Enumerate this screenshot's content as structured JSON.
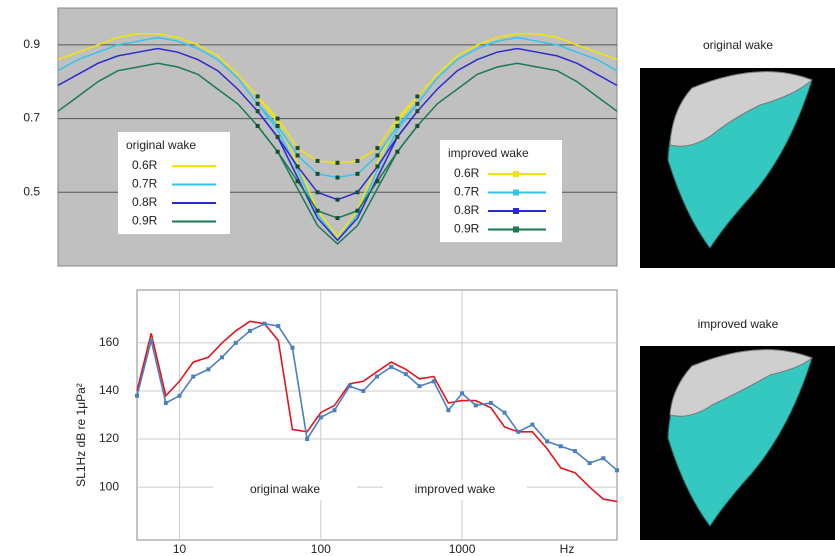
{
  "chart_data": [
    {
      "type": "line",
      "plot_background": "#c0c0c0",
      "grid": true,
      "categories": [
        null,
        null,
        null,
        null,
        null,
        null,
        null,
        null,
        null,
        null,
        null,
        null,
        null,
        null,
        null,
        null,
        null,
        null,
        null,
        null,
        null,
        null,
        null,
        null,
        null,
        null,
        null,
        null,
        null
      ],
      "ylim": [
        0.3,
        1.0
      ],
      "yticks": [
        0.5,
        0.7,
        0.9
      ],
      "legend_titles": [
        "original wake",
        "improved wake"
      ],
      "series": [
        {
          "name": "0.6R",
          "color": "#f2e600",
          "marker": false,
          "values": [
            0.86,
            0.88,
            0.9,
            0.92,
            0.93,
            0.93,
            0.92,
            0.9,
            0.87,
            0.82,
            0.76,
            0.69,
            0.58,
            0.45,
            0.38,
            0.45,
            0.58,
            0.69,
            0.76,
            0.82,
            0.87,
            0.9,
            0.92,
            0.93,
            0.93,
            0.92,
            0.9,
            0.88,
            0.86
          ]
        },
        {
          "name": "0.7R",
          "color": "#33c4ee",
          "marker": false,
          "values": [
            0.83,
            0.86,
            0.88,
            0.9,
            0.91,
            0.92,
            0.91,
            0.89,
            0.86,
            0.81,
            0.74,
            0.67,
            0.56,
            0.44,
            0.37,
            0.44,
            0.56,
            0.67,
            0.74,
            0.81,
            0.86,
            0.89,
            0.91,
            0.92,
            0.91,
            0.9,
            0.88,
            0.86,
            0.83
          ]
        },
        {
          "name": "0.8R",
          "color": "#2a2ad0",
          "marker": false,
          "values": [
            0.79,
            0.82,
            0.85,
            0.87,
            0.88,
            0.89,
            0.88,
            0.86,
            0.83,
            0.78,
            0.72,
            0.65,
            0.54,
            0.43,
            0.37,
            0.43,
            0.54,
            0.65,
            0.72,
            0.78,
            0.83,
            0.86,
            0.88,
            0.89,
            0.88,
            0.87,
            0.85,
            0.82,
            0.79
          ]
        },
        {
          "name": "0.9R",
          "color": "#1a7a50",
          "marker": false,
          "values": [
            0.72,
            0.76,
            0.8,
            0.83,
            0.84,
            0.85,
            0.84,
            0.82,
            0.78,
            0.74,
            0.68,
            0.61,
            0.51,
            0.41,
            0.36,
            0.41,
            0.51,
            0.61,
            0.68,
            0.74,
            0.78,
            0.82,
            0.84,
            0.85,
            0.84,
            0.83,
            0.8,
            0.76,
            0.72
          ]
        },
        {
          "name": "0.6R",
          "color": "#f2e600",
          "marker": true,
          "values": [
            null,
            null,
            null,
            null,
            null,
            null,
            null,
            null,
            null,
            null,
            0.76,
            0.7,
            0.62,
            0.585,
            0.58,
            0.585,
            0.62,
            0.7,
            0.76,
            null,
            null,
            null,
            null,
            null,
            null,
            null,
            null,
            null,
            null
          ]
        },
        {
          "name": "0.7R",
          "color": "#33c4ee",
          "marker": true,
          "values": [
            null,
            null,
            null,
            null,
            null,
            null,
            null,
            null,
            null,
            null,
            0.74,
            0.68,
            0.6,
            0.55,
            0.54,
            0.55,
            0.6,
            0.68,
            0.74,
            null,
            null,
            null,
            null,
            null,
            null,
            null,
            null,
            null,
            null
          ]
        },
        {
          "name": "0.8R",
          "color": "#2a2ad0",
          "marker": true,
          "values": [
            null,
            null,
            null,
            null,
            null,
            null,
            null,
            null,
            null,
            null,
            0.72,
            0.65,
            0.57,
            0.5,
            0.48,
            0.5,
            0.57,
            0.65,
            0.72,
            null,
            null,
            null,
            null,
            null,
            null,
            null,
            null,
            null,
            null
          ]
        },
        {
          "name": "0.9R",
          "color": "#1a7a50",
          "marker": true,
          "values": [
            null,
            null,
            null,
            null,
            null,
            null,
            null,
            null,
            null,
            null,
            0.68,
            0.61,
            0.53,
            0.45,
            0.43,
            0.45,
            0.53,
            0.61,
            0.68,
            null,
            null,
            null,
            null,
            null,
            null,
            null,
            null,
            null,
            null
          ]
        }
      ]
    },
    {
      "type": "line",
      "plot_background": "#ffffff",
      "grid": true,
      "log_x": true,
      "x_label": "Hz",
      "y_label": "SL1Hz dB re 1μPa²",
      "x": [
        5,
        6.3,
        8,
        10,
        12.5,
        16,
        20,
        25,
        31.5,
        40,
        50,
        63,
        80,
        100,
        125,
        160,
        200,
        250,
        315,
        400,
        500,
        630,
        800,
        1000,
        1250,
        1600,
        2000,
        2500,
        3150,
        4000,
        5000,
        6300,
        8000,
        10000,
        12500
      ],
      "xlim": [
        5,
        12500
      ],
      "xticks": [
        10,
        100,
        1000
      ],
      "ylim": [
        78,
        182
      ],
      "yticks": [
        100,
        120,
        140,
        160
      ],
      "series": [
        {
          "name": "original wake",
          "color": "#e8141c",
          "marker": false,
          "values": [
            140,
            164,
            138,
            144,
            152,
            154,
            160,
            165,
            169,
            168,
            161,
            124,
            123,
            131,
            134,
            143,
            144,
            148,
            152,
            149,
            145,
            146,
            135,
            136,
            136,
            133,
            125,
            123,
            123,
            116,
            108,
            106,
            100,
            95,
            94
          ]
        },
        {
          "name": "improved wake",
          "color": "#4a7fc0",
          "marker": true,
          "values": [
            138,
            161,
            135,
            138,
            146,
            149,
            154,
            160,
            165,
            168,
            167,
            158,
            120,
            129,
            132,
            142,
            140,
            146,
            150,
            147,
            142,
            144,
            132,
            139,
            134,
            135,
            131,
            123,
            126,
            119,
            117,
            115,
            110,
            112,
            107
          ]
        }
      ]
    }
  ],
  "images": [
    {
      "label": "original wake"
    },
    {
      "label": "improved wake"
    }
  ]
}
